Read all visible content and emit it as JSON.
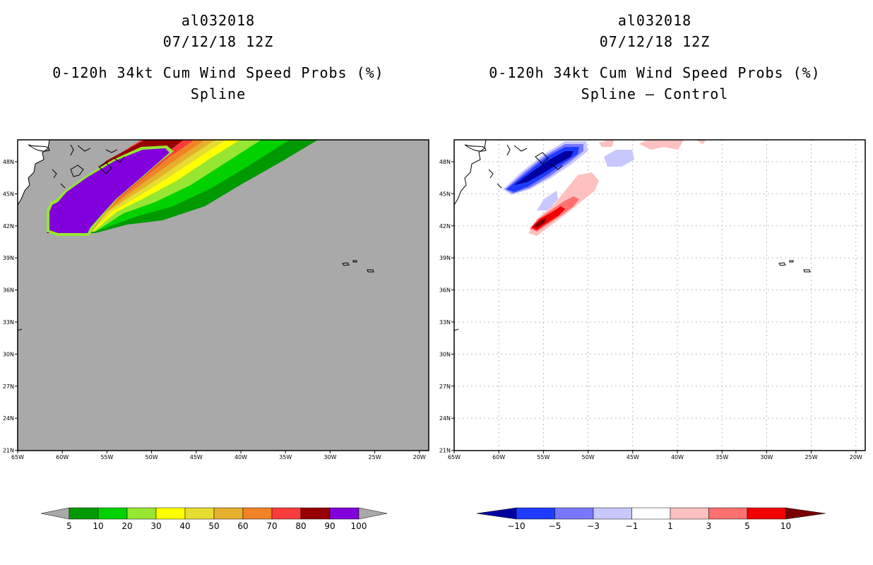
{
  "left_panel": {
    "storm_id": "al032018",
    "datetime": "07/12/18 12Z",
    "product": "0-120h 34kt Cum Wind Speed Probs (%)",
    "model": "Spline"
  },
  "right_panel": {
    "storm_id": "al032018",
    "datetime": "07/12/18 12Z",
    "product": "0-120h 34kt Cum Wind Speed Probs (%)",
    "model": "Spline – Control"
  },
  "map": {
    "lon_range": [
      -65,
      -18
    ],
    "lat_range": [
      21,
      50
    ],
    "lon_ticks": [
      "65W",
      "60W",
      "55W",
      "50W",
      "45W",
      "40W",
      "35W",
      "30W",
      "25W",
      "20W"
    ],
    "lat_ticks": [
      "48N",
      "45N",
      "42N",
      "39N",
      "36N",
      "33N",
      "30N",
      "27N",
      "24N",
      "21N"
    ]
  },
  "left_colorbar": {
    "labels": [
      "5",
      "10",
      "20",
      "30",
      "40",
      "50",
      "60",
      "70",
      "80",
      "90",
      "100"
    ],
    "colors": [
      "#009a00",
      "#00d200",
      "#96e632",
      "#ffff00",
      "#e6dc32",
      "#e6af2d",
      "#f08228",
      "#fa3c3c",
      "#960000",
      "#8200dc"
    ],
    "extend_color": "#a9a9a9"
  },
  "right_colorbar": {
    "labels": [
      "−10",
      "−5",
      "−3",
      "−1",
      "1",
      "3",
      "5",
      "10"
    ],
    "colors": [
      "#0000a0",
      "#1e3cff",
      "#7878ff",
      "#c8c8ff",
      "#ffffff",
      "#ffc0c0",
      "#ff7070",
      "#f00000",
      "#780000"
    ]
  },
  "map_colors": {
    "ocean_left": "#a9a9a9",
    "ocean_right": "#ffffff"
  }
}
